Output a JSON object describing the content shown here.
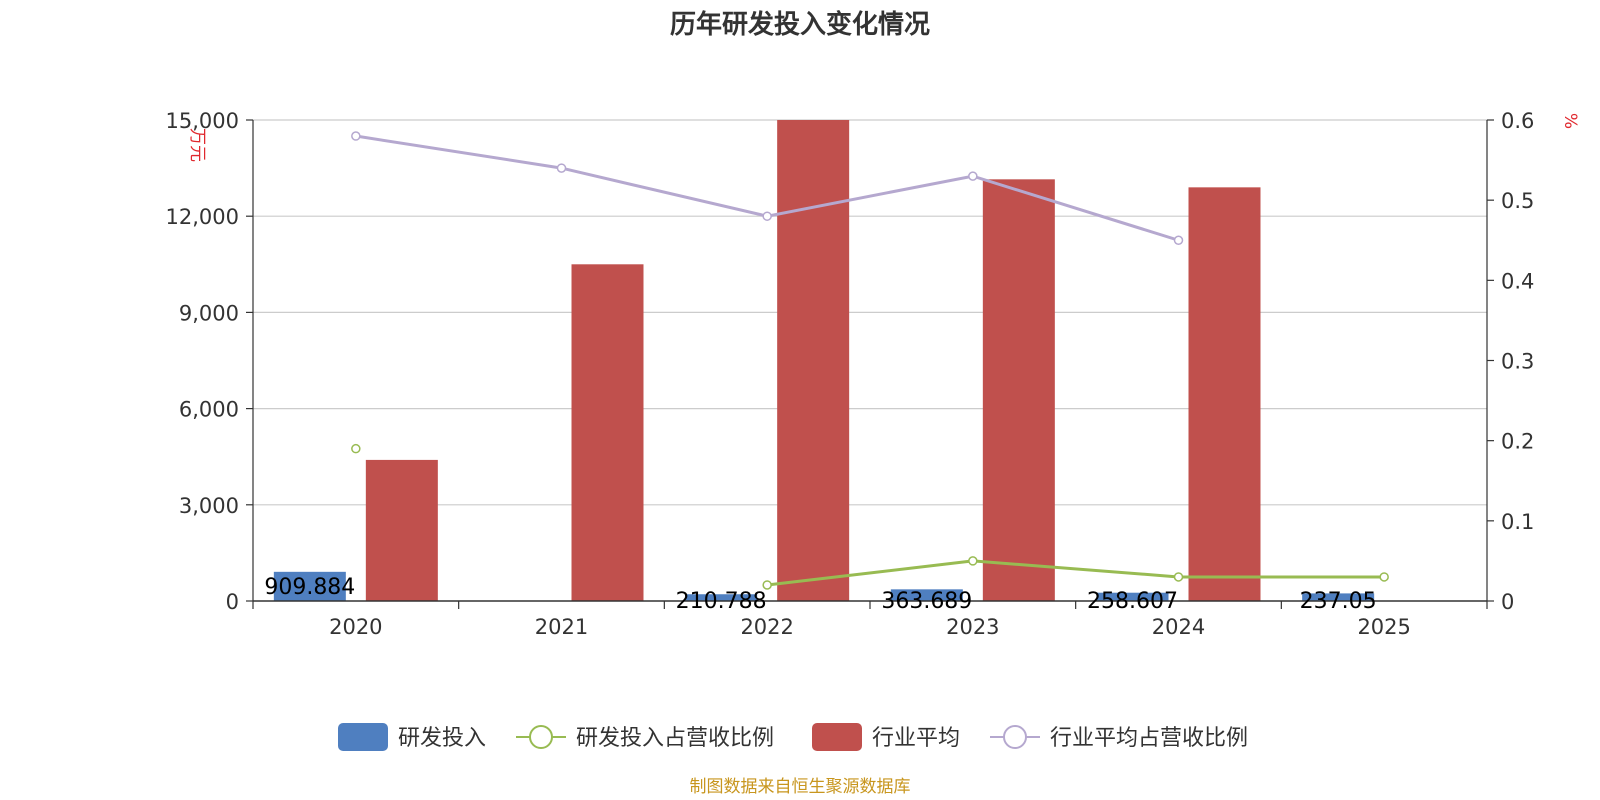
{
  "chart_data": {
    "type": "bar",
    "title": "历年研发投入变化情况",
    "categories": [
      "2020",
      "2021",
      "2022",
      "2023",
      "2024",
      "2025"
    ],
    "y_left": {
      "unit": "万元",
      "ylim": [
        0,
        15000
      ],
      "ticks": [
        "0",
        "3,000",
        "6,000",
        "9,000",
        "12,000",
        "15,000"
      ],
      "tick_values": [
        0,
        3000,
        6000,
        9000,
        12000,
        15000
      ]
    },
    "y_right": {
      "unit": "%",
      "ylim": [
        0,
        0.6
      ],
      "ticks": [
        "0",
        "0.1",
        "0.2",
        "0.3",
        "0.4",
        "0.5",
        "0.6"
      ],
      "tick_values": [
        0,
        0.1,
        0.2,
        0.3,
        0.4,
        0.5,
        0.6
      ]
    },
    "grid": true,
    "legend_position": "bottom",
    "series": [
      {
        "name": "研发投入",
        "kind": "bar",
        "axis": "left",
        "color": "#4f7fc0",
        "values": [
          909.884,
          null,
          210.788,
          363.689,
          258.607,
          237.05
        ],
        "labels": [
          "909.884",
          "",
          "210.788",
          "363.689",
          "258.607",
          "237.05"
        ]
      },
      {
        "name": "研发投入占营收比例",
        "kind": "line",
        "axis": "right",
        "color": "#98bb52",
        "values": [
          0.19,
          null,
          0.02,
          0.05,
          0.03,
          0.03
        ]
      },
      {
        "name": "行业平均",
        "kind": "bar",
        "axis": "left",
        "color": "#c0504d",
        "values": [
          4400,
          10500,
          15000,
          13150,
          12900,
          null
        ]
      },
      {
        "name": "行业平均占营收比例",
        "kind": "line",
        "axis": "right",
        "color": "#b5a8cf",
        "values": [
          0.58,
          0.54,
          0.48,
          0.53,
          0.45,
          null
        ]
      }
    ],
    "source": "制图数据来自恒生聚源数据库"
  }
}
